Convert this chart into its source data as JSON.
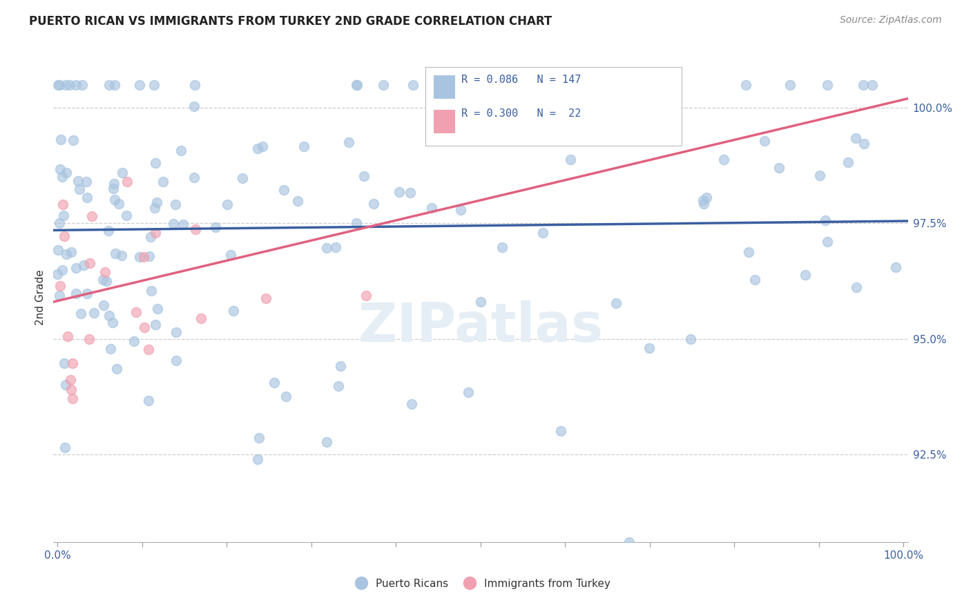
{
  "title": "PUERTO RICAN VS IMMIGRANTS FROM TURKEY 2ND GRADE CORRELATION CHART",
  "source": "Source: ZipAtlas.com",
  "ylabel": "2nd Grade",
  "r_blue": 0.086,
  "n_blue": 147,
  "r_pink": 0.3,
  "n_pink": 22,
  "blue_color": "#a8c4e0",
  "pink_color": "#f0a0b0",
  "blue_line_color": "#3a5fa0",
  "pink_line_color": "#e06080",
  "label_color": "#3a5fa0",
  "ytick_values": [
    0.925,
    0.95,
    0.975,
    1.0
  ],
  "ymin": 0.906,
  "ymax": 1.012,
  "xmin": -0.005,
  "xmax": 1.005,
  "blue_line_start_y": 0.9735,
  "blue_line_end_y": 0.9755,
  "pink_line_start_y": 0.958,
  "pink_line_end_y": 1.002,
  "watermark_text": "ZIPatlas",
  "scatter_size": 100,
  "scatter_alpha": 0.65,
  "scatter_lw": 1.2
}
